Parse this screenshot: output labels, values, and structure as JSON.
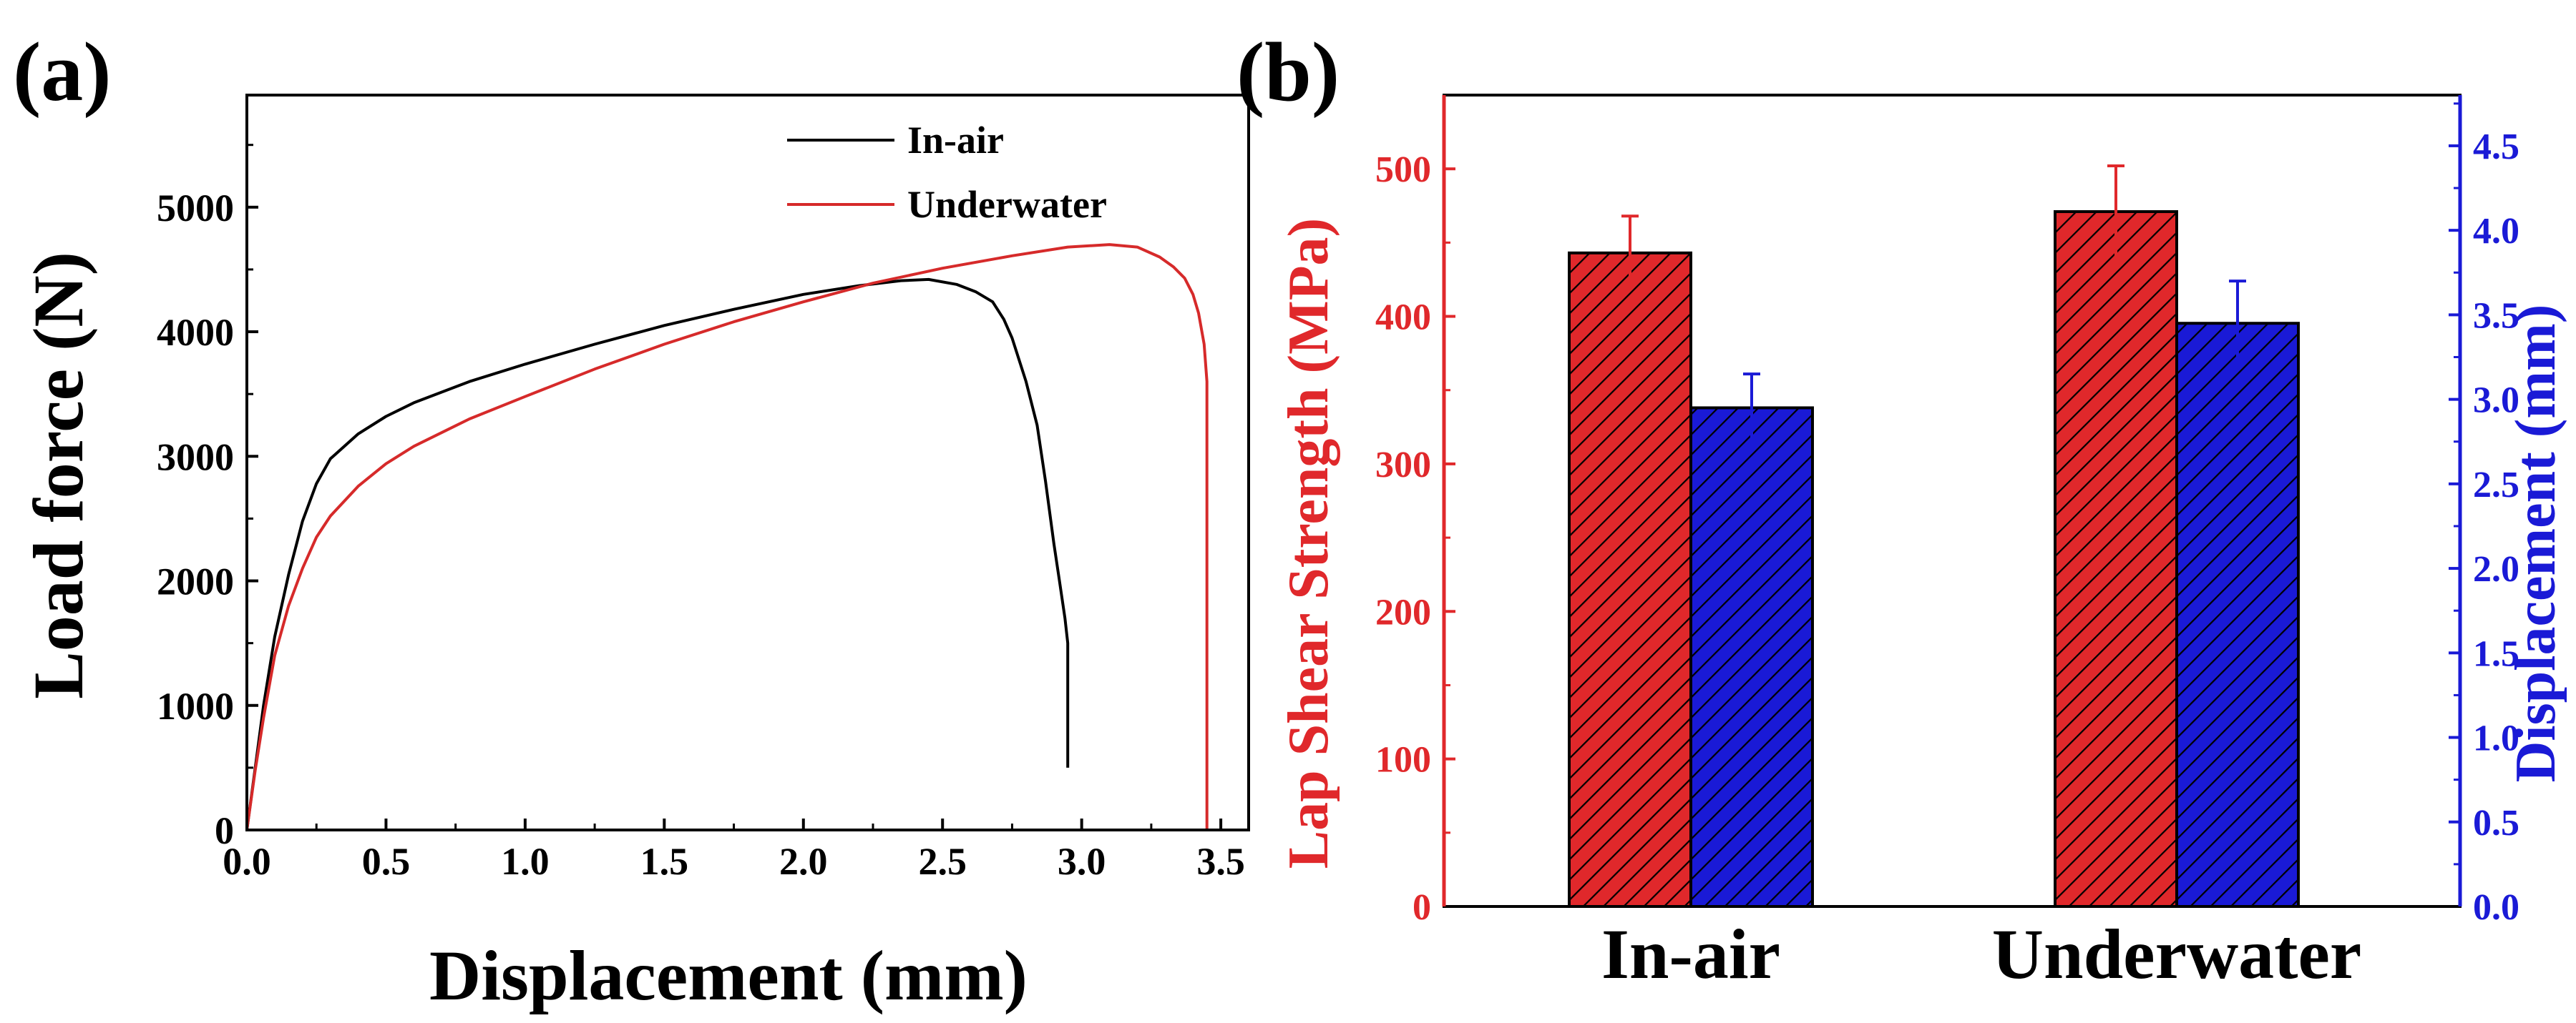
{
  "chart_data": [
    {
      "panel_label": "(a)",
      "type": "line",
      "xlabel": "Displacement (mm)",
      "ylabel": "Load force (N)",
      "xlim": [
        0,
        3.6
      ],
      "ylim": [
        0,
        5900
      ],
      "xticks": [
        "0.0",
        "0.5",
        "1.0",
        "1.5",
        "2.0",
        "2.5",
        "3.0",
        "3.5"
      ],
      "yticks": [
        "0",
        "1000",
        "2000",
        "3000",
        "4000",
        "5000"
      ],
      "legend": "top-right",
      "series": [
        {
          "name": "In-air",
          "color": "#000000",
          "x": [
            0,
            0.03,
            0.06,
            0.1,
            0.15,
            0.2,
            0.25,
            0.3,
            0.4,
            0.5,
            0.6,
            0.8,
            1.0,
            1.25,
            1.5,
            1.75,
            2.0,
            2.2,
            2.35,
            2.45,
            2.55,
            2.62,
            2.68,
            2.72,
            2.75,
            2.8,
            2.84,
            2.87,
            2.9,
            2.92,
            2.94,
            2.95,
            2.95
          ],
          "y": [
            0,
            500,
            1000,
            1550,
            2050,
            2480,
            2780,
            2980,
            3180,
            3320,
            3430,
            3600,
            3740,
            3900,
            4050,
            4180,
            4300,
            4370,
            4410,
            4420,
            4380,
            4320,
            4240,
            4100,
            3950,
            3600,
            3250,
            2800,
            2300,
            2000,
            1700,
            1500,
            500
          ]
        },
        {
          "name": "Underwater",
          "color": "#d62a2a",
          "x": [
            0,
            0.03,
            0.06,
            0.1,
            0.15,
            0.2,
            0.25,
            0.3,
            0.4,
            0.5,
            0.6,
            0.8,
            1.0,
            1.25,
            1.5,
            1.75,
            2.0,
            2.25,
            2.5,
            2.75,
            2.95,
            3.1,
            3.2,
            3.28,
            3.33,
            3.37,
            3.4,
            3.42,
            3.44,
            3.45,
            3.45
          ],
          "y": [
            0,
            480,
            900,
            1400,
            1800,
            2100,
            2350,
            2520,
            2760,
            2940,
            3080,
            3300,
            3480,
            3700,
            3900,
            4080,
            4240,
            4390,
            4510,
            4610,
            4680,
            4700,
            4680,
            4600,
            4520,
            4430,
            4300,
            4150,
            3900,
            3600,
            0
          ]
        }
      ]
    },
    {
      "panel_label": "(b)",
      "type": "bar",
      "categories": [
        "In-air",
        "Underwater"
      ],
      "ylabel_left": "Lap Shear Strength (MPa)",
      "ylabel_right": "Displacement (mm)",
      "ylim_left": [
        0,
        550
      ],
      "ylim_right": [
        0,
        4.8
      ],
      "yticks_left": [
        "0",
        "100",
        "200",
        "300",
        "400",
        "500"
      ],
      "yticks_right": [
        "0.0",
        "0.5",
        "1.0",
        "1.5",
        "2.0",
        "2.5",
        "3.0",
        "3.5",
        "4.0",
        "4.5"
      ],
      "series": [
        {
          "name": "Lap Shear Strength",
          "axis": "left",
          "color": "#e0282b",
          "values": [
            443,
            471
          ],
          "errors": [
            25,
            31
          ]
        },
        {
          "name": "Displacement",
          "axis": "right",
          "color": "#1a1ad6",
          "values": [
            2.95,
            3.45
          ],
          "errors": [
            0.2,
            0.25
          ]
        }
      ]
    }
  ]
}
